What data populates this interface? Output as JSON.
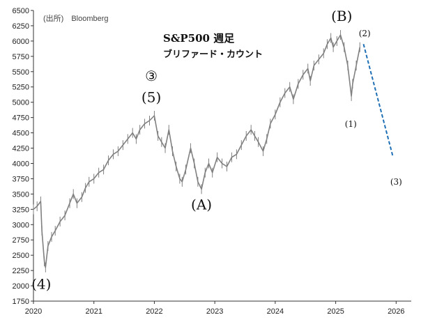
{
  "chart_data": {
    "type": "line",
    "title": "S&P500 週足",
    "subtitle": "ブリファード・カウント",
    "source": "(出所)　Bloomberg",
    "ylim": [
      1750,
      6500
    ],
    "yticks": [
      1750,
      2000,
      2250,
      2500,
      2750,
      3000,
      3250,
      3500,
      3750,
      4000,
      4250,
      4500,
      4750,
      5000,
      5250,
      5500,
      5750,
      6000,
      6250,
      6500
    ],
    "xlim": [
      2020,
      2026.25
    ],
    "xticks": [
      "2020",
      "2021",
      "2022",
      "2023",
      "2024",
      "2025",
      "2026"
    ],
    "colors": {
      "price": "#808080",
      "projection": "#1f6fb5",
      "axis": "#333333"
    },
    "series": [
      {
        "values": [
          [
            2020.0,
            3250
          ],
          [
            2020.06,
            3300
          ],
          [
            2020.12,
            3380
          ],
          [
            2020.14,
            2900
          ],
          [
            2020.18,
            2400
          ],
          [
            2020.2,
            2300
          ],
          [
            2020.24,
            2650
          ],
          [
            2020.3,
            2800
          ],
          [
            2020.36,
            2900
          ],
          [
            2020.44,
            3050
          ],
          [
            2020.52,
            3150
          ],
          [
            2020.6,
            3350
          ],
          [
            2020.66,
            3500
          ],
          [
            2020.72,
            3350
          ],
          [
            2020.8,
            3450
          ],
          [
            2020.86,
            3600
          ],
          [
            2020.92,
            3700
          ],
          [
            2021.0,
            3750
          ],
          [
            2021.08,
            3850
          ],
          [
            2021.16,
            3900
          ],
          [
            2021.24,
            4050
          ],
          [
            2021.32,
            4150
          ],
          [
            2021.4,
            4200
          ],
          [
            2021.48,
            4300
          ],
          [
            2021.56,
            4400
          ],
          [
            2021.64,
            4500
          ],
          [
            2021.7,
            4400
          ],
          [
            2021.76,
            4550
          ],
          [
            2021.84,
            4650
          ],
          [
            2021.92,
            4700
          ],
          [
            2022.0,
            4780
          ],
          [
            2022.06,
            4450
          ],
          [
            2022.12,
            4350
          ],
          [
            2022.18,
            4250
          ],
          [
            2022.24,
            4550
          ],
          [
            2022.3,
            4200
          ],
          [
            2022.36,
            3950
          ],
          [
            2022.42,
            3750
          ],
          [
            2022.46,
            3700
          ],
          [
            2022.52,
            3900
          ],
          [
            2022.6,
            4250
          ],
          [
            2022.66,
            4000
          ],
          [
            2022.72,
            3700
          ],
          [
            2022.78,
            3580
          ],
          [
            2022.84,
            3850
          ],
          [
            2022.9,
            4000
          ],
          [
            2022.96,
            3850
          ],
          [
            2023.04,
            4100
          ],
          [
            2023.12,
            4000
          ],
          [
            2023.2,
            3950
          ],
          [
            2023.28,
            4100
          ],
          [
            2023.36,
            4150
          ],
          [
            2023.44,
            4300
          ],
          [
            2023.52,
            4450
          ],
          [
            2023.6,
            4550
          ],
          [
            2023.66,
            4450
          ],
          [
            2023.72,
            4350
          ],
          [
            2023.8,
            4200
          ],
          [
            2023.86,
            4400
          ],
          [
            2023.92,
            4650
          ],
          [
            2024.0,
            4800
          ],
          [
            2024.08,
            5000
          ],
          [
            2024.16,
            5150
          ],
          [
            2024.24,
            5250
          ],
          [
            2024.3,
            5050
          ],
          [
            2024.38,
            5300
          ],
          [
            2024.46,
            5450
          ],
          [
            2024.54,
            5550
          ],
          [
            2024.58,
            5350
          ],
          [
            2024.64,
            5600
          ],
          [
            2024.72,
            5700
          ],
          [
            2024.8,
            5800
          ],
          [
            2024.86,
            5950
          ],
          [
            2024.92,
            6050
          ],
          [
            2024.96,
            5900
          ],
          [
            2025.02,
            6000
          ],
          [
            2025.08,
            6100
          ],
          [
            2025.14,
            5900
          ],
          [
            2025.2,
            5600
          ],
          [
            2025.26,
            5100
          ],
          [
            2025.28,
            5300
          ],
          [
            2025.34,
            5600
          ],
          [
            2025.4,
            5900
          ]
        ]
      },
      {
        "values": [
          [
            2025.46,
            5950
          ],
          [
            2025.95,
            4100
          ]
        ]
      }
    ],
    "annotations": [
      {
        "text": "(4)",
        "x": 2020.13,
        "y": 1950,
        "size": "large"
      },
      {
        "text": "③",
        "x": 2021.95,
        "y": 5350,
        "size": "large"
      },
      {
        "text": "(5)",
        "x": 2021.95,
        "y": 5000,
        "size": "large"
      },
      {
        "text": "(A)",
        "x": 2022.78,
        "y": 3250,
        "size": "large"
      },
      {
        "text": "(B)",
        "x": 2025.1,
        "y": 6330,
        "size": "large"
      },
      {
        "text": "(1)",
        "x": 2025.25,
        "y": 4600,
        "size": "small"
      },
      {
        "text": "(2)",
        "x": 2025.48,
        "y": 6080,
        "size": "small"
      },
      {
        "text": "(3)",
        "x": 2026.0,
        "y": 3650,
        "size": "small"
      }
    ]
  }
}
